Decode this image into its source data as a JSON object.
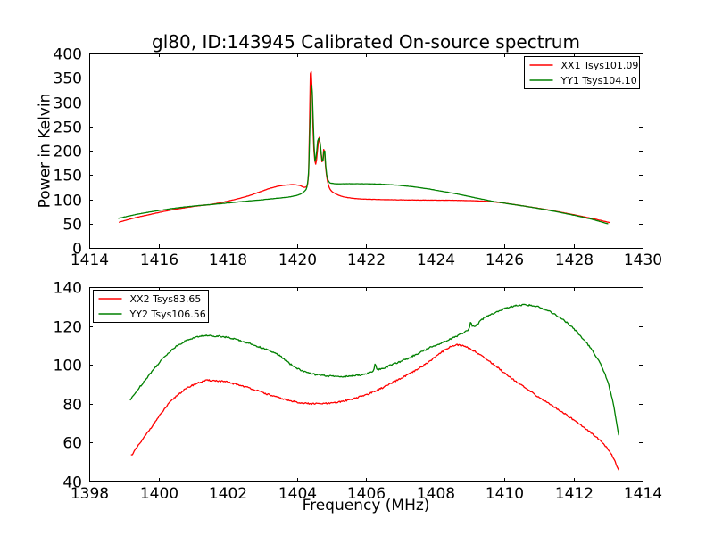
{
  "figure": {
    "title": "gl80, ID:143945 Calibrated On-source spectrum",
    "background": "#ffffff",
    "axis_color": "#000000"
  },
  "chart_data": [
    {
      "id": "top",
      "type": "line",
      "xlabel": "",
      "ylabel": "Power in Kelvin",
      "xlim": [
        1414,
        1430
      ],
      "ylim": [
        0,
        400
      ],
      "xticks": [
        1414,
        1416,
        1418,
        1420,
        1422,
        1424,
        1426,
        1428,
        1430
      ],
      "yticks": [
        0,
        50,
        100,
        150,
        200,
        250,
        300,
        350,
        400
      ],
      "grid": false,
      "legend": {
        "position": "upper-right"
      },
      "series": [
        {
          "name": "XX1 Tsys101.09",
          "color": "#ff0000",
          "noise": 0.5,
          "points": [
            [
              1414.87,
              53
            ],
            [
              1415.3,
              61.5
            ],
            [
              1415.8,
              69.5
            ],
            [
              1416.3,
              77
            ],
            [
              1416.8,
              83
            ],
            [
              1417.2,
              87
            ],
            [
              1417.45,
              88.8
            ],
            [
              1417.8,
              93
            ],
            [
              1418.2,
              99.5
            ],
            [
              1418.6,
              107
            ],
            [
              1419.0,
              117
            ],
            [
              1419.3,
              124
            ],
            [
              1419.6,
              128.5
            ],
            [
              1419.9,
              130
            ],
            [
              1420.1,
              128
            ],
            [
              1420.22,
              124.5
            ],
            [
              1420.3,
              128
            ],
            [
              1420.34,
              150
            ],
            [
              1420.37,
              255
            ],
            [
              1420.4,
              371
            ],
            [
              1420.43,
              352
            ],
            [
              1420.47,
              248
            ],
            [
              1420.51,
              186
            ],
            [
              1420.55,
              172
            ],
            [
              1420.6,
              201
            ],
            [
              1420.65,
              227
            ],
            [
              1420.7,
              196
            ],
            [
              1420.74,
              174
            ],
            [
              1420.79,
              206
            ],
            [
              1420.84,
              161
            ],
            [
              1420.89,
              137
            ],
            [
              1420.96,
              121
            ],
            [
              1421.1,
              112
            ],
            [
              1421.4,
              104.5
            ],
            [
              1421.8,
              101
            ],
            [
              1422.4,
              99.5
            ],
            [
              1423.2,
              98.6
            ],
            [
              1424.0,
              98.2
            ],
            [
              1424.8,
              97.6
            ],
            [
              1425.4,
              96.2
            ],
            [
              1425.9,
              93
            ],
            [
              1426.4,
              88
            ],
            [
              1427.0,
              81.5
            ],
            [
              1427.6,
              74
            ],
            [
              1428.2,
              65.5
            ],
            [
              1428.7,
              58
            ],
            [
              1429.05,
              52
            ]
          ]
        },
        {
          "name": "YY1 Tsys104.10",
          "color": "#008000",
          "noise": 0.5,
          "points": [
            [
              1414.85,
              61
            ],
            [
              1415.3,
              68
            ],
            [
              1415.8,
              74.5
            ],
            [
              1416.3,
              80
            ],
            [
              1416.8,
              84.5
            ],
            [
              1417.2,
              87.3
            ],
            [
              1417.45,
              88.8
            ],
            [
              1417.8,
              91
            ],
            [
              1418.2,
              93.8
            ],
            [
              1418.6,
              96.5
            ],
            [
              1419.0,
              99
            ],
            [
              1419.4,
              101.8
            ],
            [
              1419.8,
              105
            ],
            [
              1420.05,
              109
            ],
            [
              1420.18,
              114
            ],
            [
              1420.28,
              122
            ],
            [
              1420.34,
              152
            ],
            [
              1420.38,
              250
            ],
            [
              1420.42,
              336
            ],
            [
              1420.45,
              320
            ],
            [
              1420.49,
              230
            ],
            [
              1420.53,
              178
            ],
            [
              1420.57,
              195
            ],
            [
              1420.62,
              225
            ],
            [
              1420.66,
              224
            ],
            [
              1420.71,
              192
            ],
            [
              1420.75,
              176
            ],
            [
              1420.8,
              204
            ],
            [
              1420.85,
              158
            ],
            [
              1420.9,
              140
            ],
            [
              1420.97,
              133.5
            ],
            [
              1421.2,
              131.8
            ],
            [
              1421.7,
              132
            ],
            [
              1422.2,
              131.6
            ],
            [
              1422.7,
              130
            ],
            [
              1423.2,
              127
            ],
            [
              1423.7,
              122.5
            ],
            [
              1424.2,
              116.5
            ],
            [
              1424.7,
              110
            ],
            [
              1425.2,
              102.5
            ],
            [
              1425.7,
              95.5
            ],
            [
              1426.2,
              90
            ],
            [
              1426.8,
              83.5
            ],
            [
              1427.4,
              76
            ],
            [
              1428.0,
              67.5
            ],
            [
              1428.5,
              59.5
            ],
            [
              1429.0,
              49.5
            ]
          ]
        }
      ]
    },
    {
      "id": "bottom",
      "type": "line",
      "xlabel": "Frequency (MHz)",
      "ylabel": "",
      "xlim": [
        1398,
        1414
      ],
      "ylim": [
        40,
        140
      ],
      "xticks": [
        1398,
        1400,
        1402,
        1404,
        1406,
        1408,
        1410,
        1412,
        1414
      ],
      "yticks": [
        40,
        60,
        80,
        100,
        120,
        140
      ],
      "grid": false,
      "legend": {
        "position": "upper-left"
      },
      "series": [
        {
          "name": "XX2 Tsys83.65",
          "color": "#ff0000",
          "noise": 0.8,
          "points": [
            [
              1399.22,
              53.5
            ],
            [
              1399.6,
              63
            ],
            [
              1400.0,
              73
            ],
            [
              1400.35,
              81
            ],
            [
              1400.7,
              86.5
            ],
            [
              1401.05,
              90
            ],
            [
              1401.45,
              92
            ],
            [
              1401.85,
              91.5
            ],
            [
              1402.25,
              90
            ],
            [
              1402.65,
              88
            ],
            [
              1403.05,
              85.5
            ],
            [
              1403.5,
              83
            ],
            [
              1403.95,
              81
            ],
            [
              1404.45,
              80
            ],
            [
              1404.95,
              80.2
            ],
            [
              1405.45,
              81.8
            ],
            [
              1405.95,
              84.3
            ],
            [
              1406.45,
              88
            ],
            [
              1406.95,
              92.5
            ],
            [
              1407.45,
              97.2
            ],
            [
              1407.85,
              102
            ],
            [
              1408.15,
              106
            ],
            [
              1408.4,
              109
            ],
            [
              1408.65,
              110.3
            ],
            [
              1408.95,
              108.8
            ],
            [
              1409.25,
              105.8
            ],
            [
              1409.65,
              100.8
            ],
            [
              1410.05,
              95.3
            ],
            [
              1410.55,
              88.8
            ],
            [
              1411.05,
              82.8
            ],
            [
              1411.55,
              77.2
            ],
            [
              1412.0,
              71.8
            ],
            [
              1412.4,
              66.6
            ],
            [
              1412.8,
              60.6
            ],
            [
              1413.1,
              53.8
            ],
            [
              1413.32,
              45.5
            ]
          ]
        },
        {
          "name": "YY2 Tsys106.56",
          "color": "#008000",
          "noise": 0.8,
          "points": [
            [
              1399.19,
              82
            ],
            [
              1399.5,
              89.5
            ],
            [
              1399.9,
              98.5
            ],
            [
              1400.25,
              105.5
            ],
            [
              1400.6,
              110.5
            ],
            [
              1400.95,
              113.5
            ],
            [
              1401.35,
              115
            ],
            [
              1401.75,
              114.8
            ],
            [
              1402.15,
              113.5
            ],
            [
              1402.55,
              111.5
            ],
            [
              1402.95,
              109
            ],
            [
              1403.45,
              105.3
            ],
            [
              1403.95,
              98.8
            ],
            [
              1404.45,
              95.3
            ],
            [
              1404.95,
              94.2
            ],
            [
              1405.35,
              94.0
            ],
            [
              1405.75,
              94.6
            ],
            [
              1406.1,
              95.9
            ],
            [
              1406.22,
              96.8
            ],
            [
              1406.27,
              100.5
            ],
            [
              1406.33,
              97.6
            ],
            [
              1406.7,
              99.7
            ],
            [
              1407.1,
              102.5
            ],
            [
              1407.5,
              105.8
            ],
            [
              1407.9,
              109.3
            ],
            [
              1408.3,
              112.2
            ],
            [
              1408.7,
              115.5
            ],
            [
              1408.99,
              119.0
            ],
            [
              1409.03,
              122.5
            ],
            [
              1409.08,
              119.8
            ],
            [
              1409.45,
              124.5
            ],
            [
              1409.85,
              127.7
            ],
            [
              1410.2,
              129.9
            ],
            [
              1410.55,
              130.8
            ],
            [
              1410.9,
              130.2
            ],
            [
              1411.25,
              128
            ],
            [
              1411.6,
              124.5
            ],
            [
              1411.95,
              119.5
            ],
            [
              1412.3,
              113
            ],
            [
              1412.65,
              104.5
            ],
            [
              1412.95,
              93.5
            ],
            [
              1413.15,
              80
            ],
            [
              1413.32,
              62.5
            ]
          ]
        }
      ]
    }
  ]
}
